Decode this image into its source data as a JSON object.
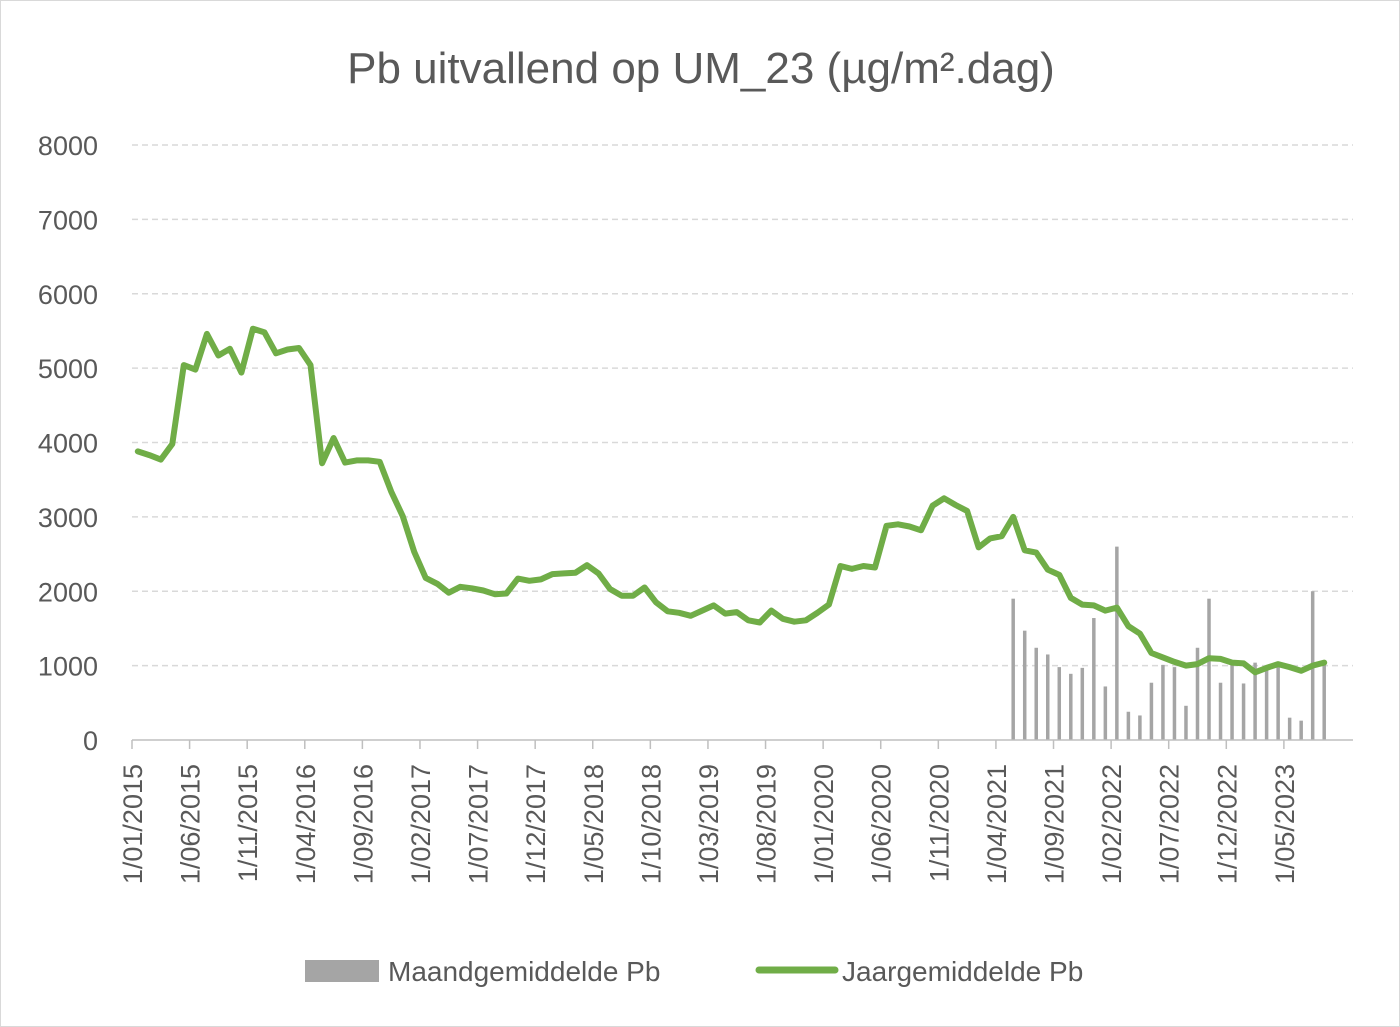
{
  "chart_data": {
    "type": "line",
    "title": "Pb uitvallend op UM_23 (µg/m².dag)",
    "xlabel": "",
    "ylabel": "",
    "ylim": [
      0,
      8000
    ],
    "yticks": [
      0,
      1000,
      2000,
      3000,
      4000,
      5000,
      6000,
      7000,
      8000
    ],
    "x_start": "2015-01",
    "x_end": "2023-10",
    "xticks": [
      "1/01/2015",
      "1/06/2015",
      "1/11/2015",
      "1/04/2016",
      "1/09/2016",
      "1/02/2017",
      "1/07/2017",
      "1/12/2017",
      "1/05/2018",
      "1/10/2018",
      "1/03/2019",
      "1/08/2019",
      "1/01/2020",
      "1/06/2020",
      "1/11/2020",
      "1/04/2021",
      "1/09/2021",
      "1/02/2022",
      "1/07/2022",
      "1/12/2022",
      "1/05/2023"
    ],
    "grid": true,
    "legend_position": "bottom",
    "series": [
      {
        "name": "Maandgemiddelde Pb",
        "kind": "bar",
        "color": "#a5a5a5",
        "points": [
          {
            "x": "2021-05",
            "y": 1900
          },
          {
            "x": "2021-06",
            "y": 1470
          },
          {
            "x": "2021-07",
            "y": 1240
          },
          {
            "x": "2021-08",
            "y": 1150
          },
          {
            "x": "2021-09",
            "y": 980
          },
          {
            "x": "2021-10",
            "y": 890
          },
          {
            "x": "2021-11",
            "y": 970
          },
          {
            "x": "2021-12",
            "y": 1640
          },
          {
            "x": "2022-01",
            "y": 720
          },
          {
            "x": "2022-02",
            "y": 2600
          },
          {
            "x": "2022-03",
            "y": 380
          },
          {
            "x": "2022-04",
            "y": 330
          },
          {
            "x": "2022-05",
            "y": 770
          },
          {
            "x": "2022-06",
            "y": 1010
          },
          {
            "x": "2022-07",
            "y": 980
          },
          {
            "x": "2022-08",
            "y": 460
          },
          {
            "x": "2022-09",
            "y": 1240
          },
          {
            "x": "2022-10",
            "y": 1900
          },
          {
            "x": "2022-11",
            "y": 770
          },
          {
            "x": "2022-12",
            "y": 1060
          },
          {
            "x": "2023-01",
            "y": 760
          },
          {
            "x": "2023-02",
            "y": 1040
          },
          {
            "x": "2023-03",
            "y": 1000
          },
          {
            "x": "2023-04",
            "y": 1040
          },
          {
            "x": "2023-05",
            "y": 300
          },
          {
            "x": "2023-06",
            "y": 260
          },
          {
            "x": "2023-07",
            "y": 2000
          },
          {
            "x": "2023-08",
            "y": 1040
          }
        ]
      },
      {
        "name": "Jaargemiddelde Pb",
        "kind": "line",
        "color": "#70ad47",
        "points": [
          {
            "x": "2015-01",
            "y": 3880
          },
          {
            "x": "2015-02",
            "y": 3830
          },
          {
            "x": "2015-03",
            "y": 3770
          },
          {
            "x": "2015-04",
            "y": 3980
          },
          {
            "x": "2015-05",
            "y": 5040
          },
          {
            "x": "2015-06",
            "y": 4980
          },
          {
            "x": "2015-07",
            "y": 5460
          },
          {
            "x": "2015-08",
            "y": 5170
          },
          {
            "x": "2015-09",
            "y": 5260
          },
          {
            "x": "2015-10",
            "y": 4940
          },
          {
            "x": "2015-11",
            "y": 5530
          },
          {
            "x": "2015-12",
            "y": 5480
          },
          {
            "x": "2016-01",
            "y": 5200
          },
          {
            "x": "2016-02",
            "y": 5250
          },
          {
            "x": "2016-03",
            "y": 5270
          },
          {
            "x": "2016-04",
            "y": 5040
          },
          {
            "x": "2016-05",
            "y": 3720
          },
          {
            "x": "2016-06",
            "y": 4060
          },
          {
            "x": "2016-07",
            "y": 3730
          },
          {
            "x": "2016-08",
            "y": 3760
          },
          {
            "x": "2016-09",
            "y": 3760
          },
          {
            "x": "2016-10",
            "y": 3740
          },
          {
            "x": "2016-11",
            "y": 3340
          },
          {
            "x": "2016-12",
            "y": 3010
          },
          {
            "x": "2017-01",
            "y": 2530
          },
          {
            "x": "2017-02",
            "y": 2180
          },
          {
            "x": "2017-03",
            "y": 2100
          },
          {
            "x": "2017-04",
            "y": 1980
          },
          {
            "x": "2017-05",
            "y": 2060
          },
          {
            "x": "2017-06",
            "y": 2040
          },
          {
            "x": "2017-07",
            "y": 2010
          },
          {
            "x": "2017-08",
            "y": 1960
          },
          {
            "x": "2017-09",
            "y": 1970
          },
          {
            "x": "2017-10",
            "y": 2170
          },
          {
            "x": "2017-11",
            "y": 2140
          },
          {
            "x": "2017-12",
            "y": 2160
          },
          {
            "x": "2018-01",
            "y": 2230
          },
          {
            "x": "2018-02",
            "y": 2240
          },
          {
            "x": "2018-03",
            "y": 2250
          },
          {
            "x": "2018-04",
            "y": 2350
          },
          {
            "x": "2018-05",
            "y": 2240
          },
          {
            "x": "2018-06",
            "y": 2030
          },
          {
            "x": "2018-07",
            "y": 1940
          },
          {
            "x": "2018-08",
            "y": 1940
          },
          {
            "x": "2018-09",
            "y": 2050
          },
          {
            "x": "2018-10",
            "y": 1850
          },
          {
            "x": "2018-11",
            "y": 1730
          },
          {
            "x": "2018-12",
            "y": 1710
          },
          {
            "x": "2019-01",
            "y": 1670
          },
          {
            "x": "2019-02",
            "y": 1740
          },
          {
            "x": "2019-03",
            "y": 1810
          },
          {
            "x": "2019-04",
            "y": 1700
          },
          {
            "x": "2019-05",
            "y": 1720
          },
          {
            "x": "2019-06",
            "y": 1610
          },
          {
            "x": "2019-07",
            "y": 1580
          },
          {
            "x": "2019-08",
            "y": 1740
          },
          {
            "x": "2019-09",
            "y": 1630
          },
          {
            "x": "2019-10",
            "y": 1590
          },
          {
            "x": "2019-11",
            "y": 1610
          },
          {
            "x": "2019-12",
            "y": 1710
          },
          {
            "x": "2020-01",
            "y": 1820
          },
          {
            "x": "2020-02",
            "y": 2340
          },
          {
            "x": "2020-03",
            "y": 2300
          },
          {
            "x": "2020-04",
            "y": 2340
          },
          {
            "x": "2020-05",
            "y": 2320
          },
          {
            "x": "2020-06",
            "y": 2880
          },
          {
            "x": "2020-07",
            "y": 2900
          },
          {
            "x": "2020-08",
            "y": 2870
          },
          {
            "x": "2020-09",
            "y": 2820
          },
          {
            "x": "2020-10",
            "y": 3150
          },
          {
            "x": "2020-11",
            "y": 3250
          },
          {
            "x": "2020-12",
            "y": 3160
          },
          {
            "x": "2021-01",
            "y": 3080
          },
          {
            "x": "2021-02",
            "y": 2590
          },
          {
            "x": "2021-03",
            "y": 2710
          },
          {
            "x": "2021-04",
            "y": 2740
          },
          {
            "x": "2021-05",
            "y": 3000
          },
          {
            "x": "2021-06",
            "y": 2550
          },
          {
            "x": "2021-07",
            "y": 2520
          },
          {
            "x": "2021-08",
            "y": 2290
          },
          {
            "x": "2021-09",
            "y": 2220
          },
          {
            "x": "2021-10",
            "y": 1910
          },
          {
            "x": "2021-11",
            "y": 1820
          },
          {
            "x": "2021-12",
            "y": 1810
          },
          {
            "x": "2022-01",
            "y": 1740
          },
          {
            "x": "2022-02",
            "y": 1780
          },
          {
            "x": "2022-03",
            "y": 1530
          },
          {
            "x": "2022-04",
            "y": 1430
          },
          {
            "x": "2022-05",
            "y": 1170
          },
          {
            "x": "2022-06",
            "y": 1110
          },
          {
            "x": "2022-07",
            "y": 1050
          },
          {
            "x": "2022-08",
            "y": 1000
          },
          {
            "x": "2022-09",
            "y": 1020
          },
          {
            "x": "2022-10",
            "y": 1100
          },
          {
            "x": "2022-11",
            "y": 1090
          },
          {
            "x": "2022-12",
            "y": 1040
          },
          {
            "x": "2023-01",
            "y": 1030
          },
          {
            "x": "2023-02",
            "y": 910
          },
          {
            "x": "2023-03",
            "y": 970
          },
          {
            "x": "2023-04",
            "y": 1020
          },
          {
            "x": "2023-05",
            "y": 980
          },
          {
            "x": "2023-06",
            "y": 930
          },
          {
            "x": "2023-07",
            "y": 1000
          },
          {
            "x": "2023-08",
            "y": 1040
          }
        ]
      }
    ]
  }
}
